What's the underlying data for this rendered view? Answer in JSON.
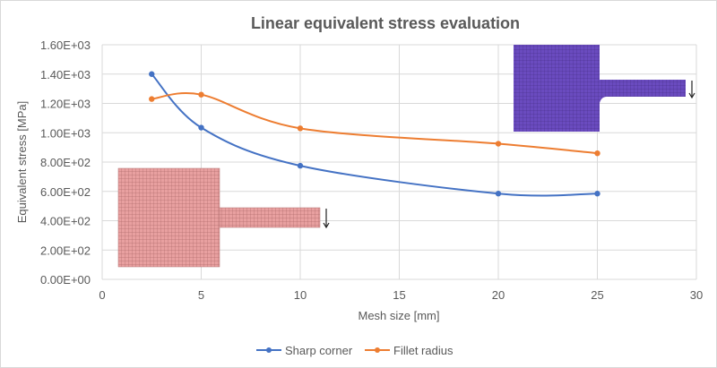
{
  "chart_data": {
    "type": "line",
    "title": "Linear equivalent stress evaluation",
    "xlabel": "Mesh size [mm]",
    "ylabel": "Equivalent stress [MPa]",
    "xlim": [
      0,
      30
    ],
    "ylim": [
      0,
      1600
    ],
    "xticks": [
      "0",
      "5",
      "10",
      "15",
      "20",
      "25",
      "30"
    ],
    "yticks": [
      "0.00E+00",
      "2.00E+02",
      "4.00E+02",
      "6.00E+02",
      "8.00E+02",
      "1.00E+03",
      "1.20E+03",
      "1.40E+03",
      "1.60E+03"
    ],
    "grid": true,
    "smoothed": true,
    "legend_position": "bottom",
    "series": [
      {
        "name": "Sharp corner",
        "color": "#4472C4",
        "x": [
          2.5,
          5,
          10,
          20,
          25
        ],
        "y": [
          1400,
          1035,
          775,
          585,
          585
        ]
      },
      {
        "name": "Fillet radius",
        "color": "#ED7D31",
        "x": [
          2.5,
          5,
          10,
          20,
          25
        ],
        "y": [
          1230,
          1260,
          1030,
          925,
          860
        ]
      }
    ],
    "insets": [
      {
        "description_icon": "sharp-corner-mesh-icon",
        "color": "#E8A0A0"
      },
      {
        "description_icon": "fillet-mesh-icon",
        "color": "#6A4BBF"
      }
    ]
  }
}
